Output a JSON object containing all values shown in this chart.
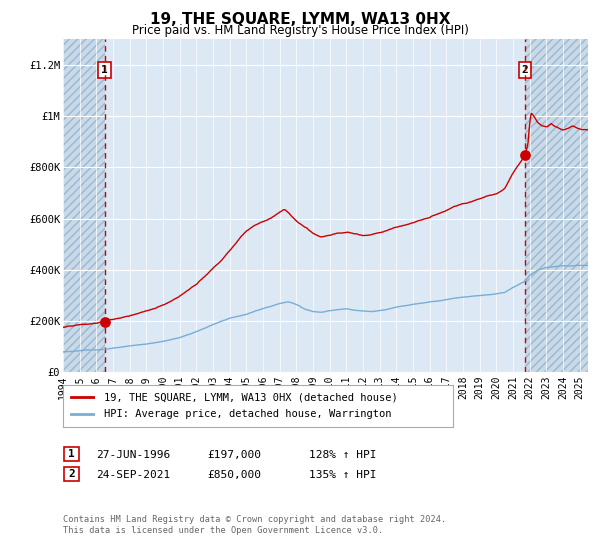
{
  "title": "19, THE SQUARE, LYMM, WA13 0HX",
  "subtitle": "Price paid vs. HM Land Registry's House Price Index (HPI)",
  "ylim": [
    0,
    1300000
  ],
  "xlim_start": 1994.0,
  "xlim_end": 2025.5,
  "yticks": [
    0,
    200000,
    400000,
    600000,
    800000,
    1000000,
    1200000
  ],
  "ytick_labels": [
    "£0",
    "£200K",
    "£400K",
    "£600K",
    "£800K",
    "£1M",
    "£1.2M"
  ],
  "xticks": [
    1994,
    1995,
    1996,
    1997,
    1998,
    1999,
    2000,
    2001,
    2002,
    2003,
    2004,
    2005,
    2006,
    2007,
    2008,
    2009,
    2010,
    2011,
    2012,
    2013,
    2014,
    2015,
    2016,
    2017,
    2018,
    2019,
    2020,
    2021,
    2022,
    2023,
    2024,
    2025
  ],
  "sale1_x": 1996.49,
  "sale1_y": 197000,
  "sale2_x": 2021.73,
  "sale2_y": 850000,
  "sale1_date": "27-JUN-1996",
  "sale1_price": "£197,000",
  "sale1_hpi": "128% ↑ HPI",
  "sale2_date": "24-SEP-2021",
  "sale2_price": "£850,000",
  "sale2_hpi": "135% ↑ HPI",
  "line1_color": "#cc0000",
  "line2_color": "#7aadd4",
  "vline_color": "#cc0000",
  "bg_color": "#dce9f5",
  "hatch_bg_color": "#c8daea",
  "grid_color": "#ffffff",
  "legend1_label": "19, THE SQUARE, LYMM, WA13 0HX (detached house)",
  "legend2_label": "HPI: Average price, detached house, Warrington",
  "footer1": "Contains HM Land Registry data © Crown copyright and database right 2024.",
  "footer2": "This data is licensed under the Open Government Licence v3.0."
}
